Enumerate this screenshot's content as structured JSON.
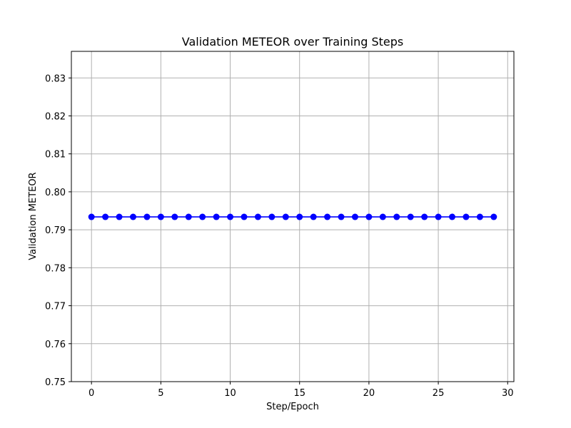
{
  "chart_data": {
    "type": "line",
    "title": "Validation METEOR over Training Steps",
    "xlabel": "Step/Epoch",
    "ylabel": "Validation METEOR",
    "xlim": [
      -1.45,
      30.45
    ],
    "ylim": [
      0.75,
      0.837
    ],
    "xticks": [
      0,
      5,
      10,
      15,
      20,
      25,
      30
    ],
    "yticks": [
      0.75,
      0.76,
      0.77,
      0.78,
      0.79,
      0.8,
      0.81,
      0.82,
      0.83
    ],
    "ytick_labels": [
      "0.75",
      "0.76",
      "0.77",
      "0.78",
      "0.79",
      "0.80",
      "0.81",
      "0.82",
      "0.83"
    ],
    "grid": true,
    "series": [
      {
        "color": "#0000ff",
        "marker": "circle",
        "x": [
          0,
          1,
          2,
          3,
          4,
          5,
          6,
          7,
          8,
          9,
          10,
          11,
          12,
          13,
          14,
          15,
          16,
          17,
          18,
          19,
          20,
          21,
          22,
          23,
          24,
          25,
          26,
          27,
          28,
          29
        ],
        "y": [
          0.7934,
          0.7934,
          0.7934,
          0.7934,
          0.7934,
          0.7934,
          0.7934,
          0.7934,
          0.7934,
          0.7934,
          0.7934,
          0.7934,
          0.7934,
          0.7934,
          0.7934,
          0.7934,
          0.7934,
          0.7934,
          0.7934,
          0.7934,
          0.7934,
          0.7934,
          0.7934,
          0.7934,
          0.7934,
          0.7934,
          0.7934,
          0.7934,
          0.7934,
          0.7934
        ]
      }
    ]
  }
}
